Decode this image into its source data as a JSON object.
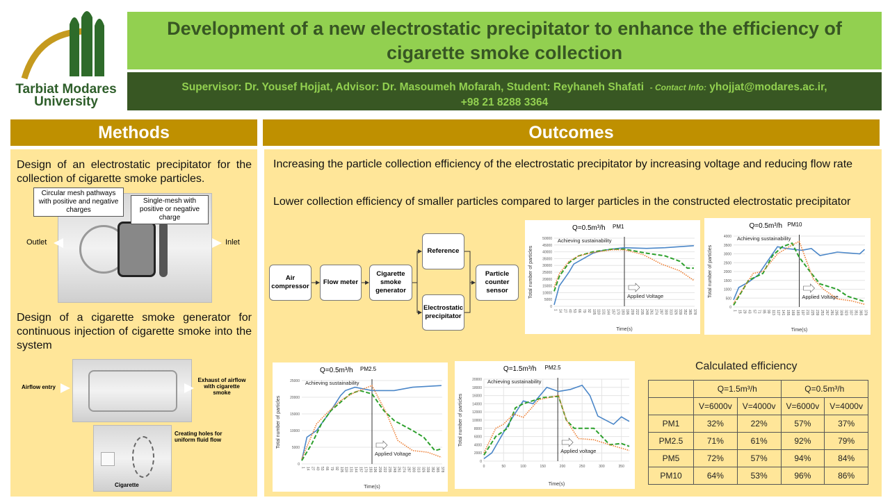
{
  "logo": {
    "text_line1": "Tarbiat Modares",
    "text_line2": "University"
  },
  "title": "Development of a new electrostatic precipitator to enhance the efficiency of cigarette smoke collection",
  "authors": {
    "main": "Supervisor: Dr. Yousef Hojjat, Advisor: Dr. Masoumeh Mofarah, Student: Reyhaneh Shafati",
    "contact_label": "- Contact Info:",
    "contact_email": "yhojjat@modares.ac.ir,",
    "contact_phone": "+98 21 8288 3364"
  },
  "methods": {
    "heading": "Methods",
    "item1": "Design of an electrostatic precipitator for the collection of cigarette smoke particles.",
    "photo1": {
      "callout1": "Circular mesh pathways with positive and negative charges",
      "callout2": "Single-mesh with positive or negative charge",
      "outlet": "Outlet",
      "inlet": "Inlet"
    },
    "item2": "Design of a cigarette smoke generator for continuous injection of cigarette smoke into the system",
    "photo2": {
      "entry": "Airflow entry",
      "exhaust": "Exhaust of airflow with cigarette smoke",
      "holes": "Creating holes for uniform fluid flow",
      "cigarette": "Cigarette"
    }
  },
  "outcomes": {
    "heading": "Outcomes",
    "p1": "Increasing the particle collection efficiency of the electrostatic precipitator by increasing voltage and reducing flow rate",
    "p2": "Lower collection efficiency of smaller particles compared to larger particles in the constructed electrostatic precipitator",
    "flow": {
      "air": "Air compressor",
      "meter": "Flow meter",
      "gen": "Cigarette smoke generator",
      "ref": "Reference",
      "esp": "Electrostatic precipitator",
      "sensor": "Particle counter sensor"
    }
  },
  "series_colors": [
    "#4a86c8",
    "#2ca02c",
    "#ed7d31"
  ],
  "chart_data": [
    {
      "type": "line",
      "title": "Q=0.5m³/h",
      "subtitle": "PM1",
      "xlabel": "Time(s)",
      "ylabel": "Total number of particles",
      "ylim": [
        0,
        50000
      ],
      "yticks": [
        0,
        5000,
        10000,
        15000,
        20000,
        25000,
        30000,
        35000,
        40000,
        45000,
        50000
      ],
      "xlim": [
        0,
        380
      ],
      "xticks": [
        1,
        14,
        27,
        40,
        53,
        66,
        79,
        92,
        105,
        118,
        131,
        144,
        157,
        170,
        183,
        196,
        209,
        222,
        235,
        248,
        261,
        274,
        287,
        300,
        313,
        326,
        339,
        352,
        365,
        378
      ],
      "annotation_top": "Achieving sustainability",
      "annotation_bottom": "Applied Voltage",
      "voltage_time": 190,
      "series": [
        {
          "style": "solid",
          "x": [
            0,
            14,
            27,
            40,
            53,
            79,
            105,
            131,
            157,
            190,
            250,
            300,
            378
          ],
          "y": [
            1000,
            15000,
            20000,
            25000,
            31000,
            35000,
            39000,
            41000,
            42000,
            43000,
            42500,
            43000,
            44500
          ]
        },
        {
          "style": "dashed",
          "x": [
            0,
            14,
            40,
            66,
            105,
            157,
            190,
            250,
            300,
            340,
            360,
            378
          ],
          "y": [
            11000,
            22000,
            32000,
            37000,
            40000,
            42000,
            42000,
            39000,
            37000,
            33000,
            28000,
            28000
          ]
        },
        {
          "style": "dotted",
          "x": [
            0,
            14,
            40,
            66,
            105,
            157,
            190,
            240,
            290,
            340,
            378
          ],
          "y": [
            14000,
            24000,
            33000,
            37000,
            39500,
            41500,
            41500,
            38000,
            31000,
            26000,
            19000
          ]
        }
      ]
    },
    {
      "type": "line",
      "title": "Q=0.5m³/h",
      "subtitle": "PM10",
      "xlabel": "Time(s)",
      "ylabel": "Total number of particles",
      "ylim": [
        0,
        4000
      ],
      "yticks": [
        0,
        500,
        1000,
        1500,
        2000,
        2500,
        3000,
        3500,
        4000
      ],
      "xlim": [
        0,
        380
      ],
      "xticks": [
        1,
        15,
        29,
        43,
        57,
        71,
        85,
        99,
        113,
        127,
        141,
        155,
        169,
        183,
        197,
        211,
        225,
        239,
        253,
        267,
        281,
        295,
        309,
        323,
        337,
        351,
        365,
        379
      ],
      "annotation_top": "Achieving sustainability",
      "annotation_bottom": "Applied Voltage",
      "voltage_time": 190,
      "series": [
        {
          "style": "solid",
          "x": [
            0,
            15,
            43,
            71,
            99,
            113,
            127,
            155,
            197,
            225,
            250,
            300,
            365,
            379
          ],
          "y": [
            400,
            1100,
            1400,
            1800,
            2600,
            3000,
            3400,
            3300,
            3200,
            3300,
            2900,
            3100,
            3000,
            3250
          ]
        },
        {
          "style": "dashed",
          "x": [
            0,
            43,
            85,
            113,
            141,
            169,
            190,
            225,
            250,
            300,
            330,
            379
          ],
          "y": [
            100,
            1500,
            1900,
            2900,
            3400,
            3600,
            2800,
            1900,
            1300,
            1000,
            600,
            300
          ]
        },
        {
          "style": "dotted",
          "x": [
            0,
            57,
            85,
            127,
            169,
            190,
            230,
            260,
            300,
            340,
            379
          ],
          "y": [
            200,
            1900,
            2000,
            3000,
            3500,
            3700,
            1600,
            1000,
            450,
            350,
            150
          ]
        }
      ]
    },
    {
      "type": "line",
      "title": "Q=0.5m³/h",
      "subtitle": "PM2.5",
      "xlabel": "Time(s)",
      "ylabel": "Total number of particles",
      "ylim": [
        0,
        25000
      ],
      "yticks": [
        0,
        5000,
        10000,
        15000,
        20000,
        25000
      ],
      "xlim": [
        0,
        380
      ],
      "xticks": [
        1,
        14,
        27,
        40,
        53,
        66,
        79,
        92,
        105,
        118,
        131,
        144,
        157,
        170,
        183,
        196,
        209,
        222,
        235,
        248,
        261,
        274,
        287,
        300,
        313,
        326,
        339,
        352,
        365,
        378
      ],
      "annotation_top": "Achieving sustainability",
      "annotation_bottom": "Applied Voltage",
      "voltage_time": 190,
      "series": [
        {
          "style": "solid",
          "x": [
            0,
            14,
            40,
            79,
            105,
            118,
            144,
            190,
            250,
            300,
            378
          ],
          "y": [
            1000,
            8000,
            10000,
            16000,
            20500,
            22000,
            23000,
            22000,
            22000,
            23000,
            23500
          ]
        },
        {
          "style": "dashed",
          "x": [
            0,
            27,
            53,
            79,
            131,
            157,
            190,
            222,
            250,
            300,
            330,
            360,
            378
          ],
          "y": [
            1000,
            6000,
            12000,
            16000,
            21000,
            22000,
            21000,
            16000,
            13000,
            10000,
            8000,
            4000,
            4500
          ]
        },
        {
          "style": "dotted",
          "x": [
            0,
            40,
            66,
            105,
            144,
            190,
            230,
            260,
            300,
            340,
            378
          ],
          "y": [
            1500,
            12000,
            15000,
            19000,
            21500,
            23500,
            15000,
            7000,
            4000,
            3500,
            2000
          ]
        }
      ]
    },
    {
      "type": "line",
      "title": "Q=1.5m³/h",
      "subtitle": "PM2.5",
      "xlabel": "Time(s)",
      "ylabel": "Total number of particles",
      "ylim": [
        0,
        20000
      ],
      "yticks": [
        0,
        2000,
        4000,
        6000,
        8000,
        10000,
        12000,
        14000,
        16000,
        18000,
        20000
      ],
      "xlim": [
        0,
        370
      ],
      "xticks": [
        0,
        50,
        100,
        150,
        200,
        250,
        300,
        350
      ],
      "grid": true,
      "annotation_top": "Achieving sustainability",
      "annotation_bottom": "Applied voltage",
      "voltage_time": 188,
      "series": [
        {
          "style": "solid",
          "x": [
            0,
            20,
            50,
            75,
            100,
            125,
            160,
            190,
            220,
            250,
            270,
            290,
            330,
            350,
            370
          ],
          "y": [
            600,
            2000,
            7000,
            11000,
            14700,
            14000,
            18000,
            17000,
            17500,
            18500,
            16000,
            11000,
            9000,
            10800,
            9700
          ]
        },
        {
          "style": "dashed",
          "x": [
            0,
            30,
            60,
            80,
            100,
            150,
            190,
            210,
            230,
            280,
            300,
            320,
            350,
            370
          ],
          "y": [
            1500,
            6000,
            8000,
            13000,
            14000,
            15500,
            15800,
            10000,
            8000,
            8000,
            6000,
            4000,
            4300,
            3600
          ]
        },
        {
          "style": "dotted",
          "x": [
            0,
            30,
            50,
            75,
            100,
            140,
            190,
            210,
            240,
            280,
            320,
            370
          ],
          "y": [
            2000,
            8000,
            9000,
            11500,
            10700,
            15000,
            16000,
            10000,
            5500,
            5200,
            4000,
            2600
          ]
        }
      ]
    }
  ],
  "efficiency": {
    "title": "Calculated efficiency",
    "q_headers": [
      "Q=1.5m³/h",
      "Q=0.5m³/h"
    ],
    "v_headers": [
      "V=6000v",
      "V=4000v",
      "V=6000v",
      "V=4000v"
    ],
    "rows": [
      {
        "label": "PM1",
        "values": [
          "32%",
          "22%",
          "57%",
          "37%"
        ]
      },
      {
        "label": "PM2.5",
        "values": [
          "71%",
          "61%",
          "92%",
          "79%"
        ]
      },
      {
        "label": "PM5",
        "values": [
          "72%",
          "57%",
          "94%",
          "84%"
        ]
      },
      {
        "label": "PM10",
        "values": [
          "64%",
          "53%",
          "96%",
          "86%"
        ]
      }
    ]
  }
}
